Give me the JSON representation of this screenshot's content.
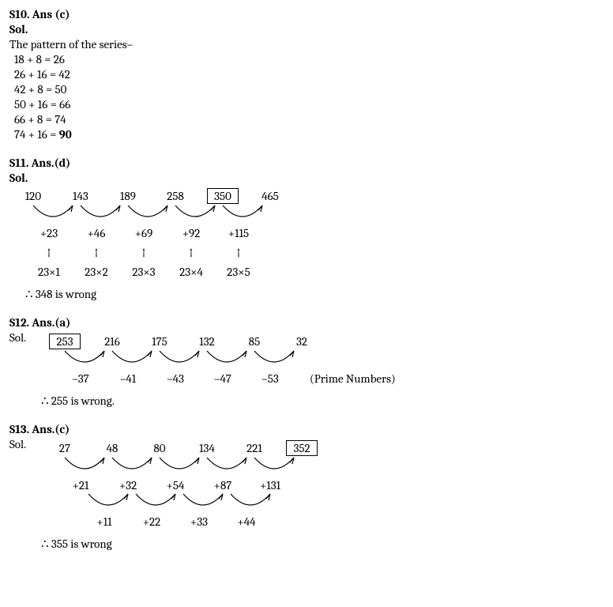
{
  "s10": {
    "header": "S10. Ans (c)",
    "sol": "Sol.",
    "pattern_line": "The pattern of the series–",
    "eqs": [
      "18 + 8 = 26",
      "26 + 16 = 42",
      "42 + 8 = 50",
      "50 + 16 = 66",
      "66 + 8 = 74",
      "74 + 16 = "
    ],
    "last_bold": "90"
  },
  "s11": {
    "header": "S11. Ans.(d)",
    "sol": "Sol.",
    "series": [
      "120",
      "143",
      "189",
      "258",
      "350",
      "465"
    ],
    "boxed_index": 4,
    "diffs": [
      "+23",
      "+46",
      "+69",
      "+92",
      "+115"
    ],
    "mults": [
      "23×1",
      "23×2",
      "23×3",
      "23×4",
      "23×5"
    ],
    "concl": "∴ 348 is wrong"
  },
  "s12": {
    "header": "S12. Ans.(a)",
    "sol": "Sol.",
    "series": [
      "253",
      "216",
      "175",
      "132",
      "85",
      "32"
    ],
    "boxed_index": 0,
    "diffs": [
      "–37",
      "–41",
      "–43",
      "–47",
      "–53"
    ],
    "note": "(Prime Numbers)",
    "concl": "∴ 255 is wrong."
  },
  "s13": {
    "header": "S13. Ans.(c)",
    "sol": "Sol.",
    "series": [
      "27",
      "48",
      "80",
      "134",
      "221",
      "352"
    ],
    "boxed_index": 5,
    "diffs": [
      "+21",
      "+32",
      "+54",
      "+87",
      "+131"
    ],
    "diffs2": [
      "+11",
      "+22",
      "+33",
      "+44"
    ],
    "concl": "∴ 355 is wrong"
  },
  "arc": {
    "width": 60,
    "height": 22,
    "stroke": "#000",
    "stroke_width": 1.2
  }
}
